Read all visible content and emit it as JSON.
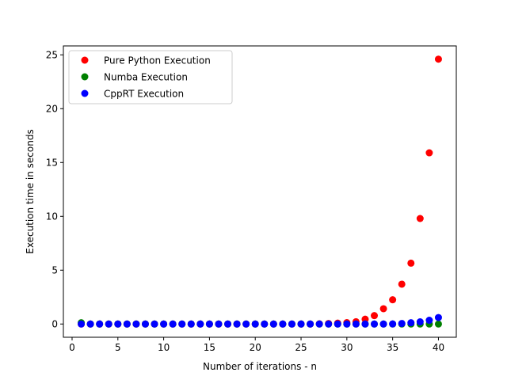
{
  "chart_data": {
    "type": "scatter",
    "title": "",
    "xlabel": "Number of iterations - n",
    "ylabel": "Execution time in seconds",
    "xlim": [
      -0.95,
      41.95
    ],
    "ylim": [
      -1.23,
      25.83
    ],
    "xticks": [
      0,
      5,
      10,
      15,
      20,
      25,
      30,
      35,
      40
    ],
    "yticks": [
      0,
      5,
      10,
      15,
      20,
      25
    ],
    "grid": false,
    "legend_position": "top-left",
    "x": [
      1,
      2,
      3,
      4,
      5,
      6,
      7,
      8,
      9,
      10,
      11,
      12,
      13,
      14,
      15,
      16,
      17,
      18,
      19,
      20,
      21,
      22,
      23,
      24,
      25,
      26,
      27,
      28,
      29,
      30,
      31,
      32,
      33,
      34,
      35,
      36,
      37,
      38,
      39,
      40
    ],
    "series": [
      {
        "name": "Pure Python Execution",
        "color": "#ff0000",
        "values": [
          0,
          0,
          0,
          0,
          0,
          0,
          0,
          0,
          0,
          0,
          0,
          0,
          0,
          0,
          0,
          0,
          0,
          0,
          0,
          0,
          0,
          0,
          0,
          0,
          0,
          0,
          0.02,
          0.05,
          0.08,
          0.13,
          0.21,
          0.45,
          0.78,
          1.42,
          2.25,
          3.7,
          5.65,
          9.8,
          15.9,
          24.6
        ]
      },
      {
        "name": "Numba Execution",
        "color": "#008000",
        "values": [
          0.12,
          0,
          0,
          0,
          0,
          0,
          0,
          0,
          0,
          0,
          0,
          0,
          0,
          0,
          0,
          0,
          0,
          0,
          0,
          0,
          0,
          0,
          0,
          0,
          0,
          0,
          0,
          0,
          0,
          0,
          0,
          0,
          0,
          0,
          0,
          0,
          0,
          0,
          0,
          0
        ]
      },
      {
        "name": "CppRT Execution",
        "color": "#0000ff",
        "values": [
          0,
          0,
          0,
          0,
          0,
          0,
          0,
          0,
          0,
          0,
          0,
          0,
          0,
          0,
          0,
          0,
          0,
          0,
          0,
          0,
          0,
          0,
          0,
          0,
          0,
          0,
          0,
          0,
          0,
          0,
          0,
          0,
          0,
          0,
          0.01,
          0.05,
          0.12,
          0.2,
          0.35,
          0.6
        ]
      }
    ]
  }
}
